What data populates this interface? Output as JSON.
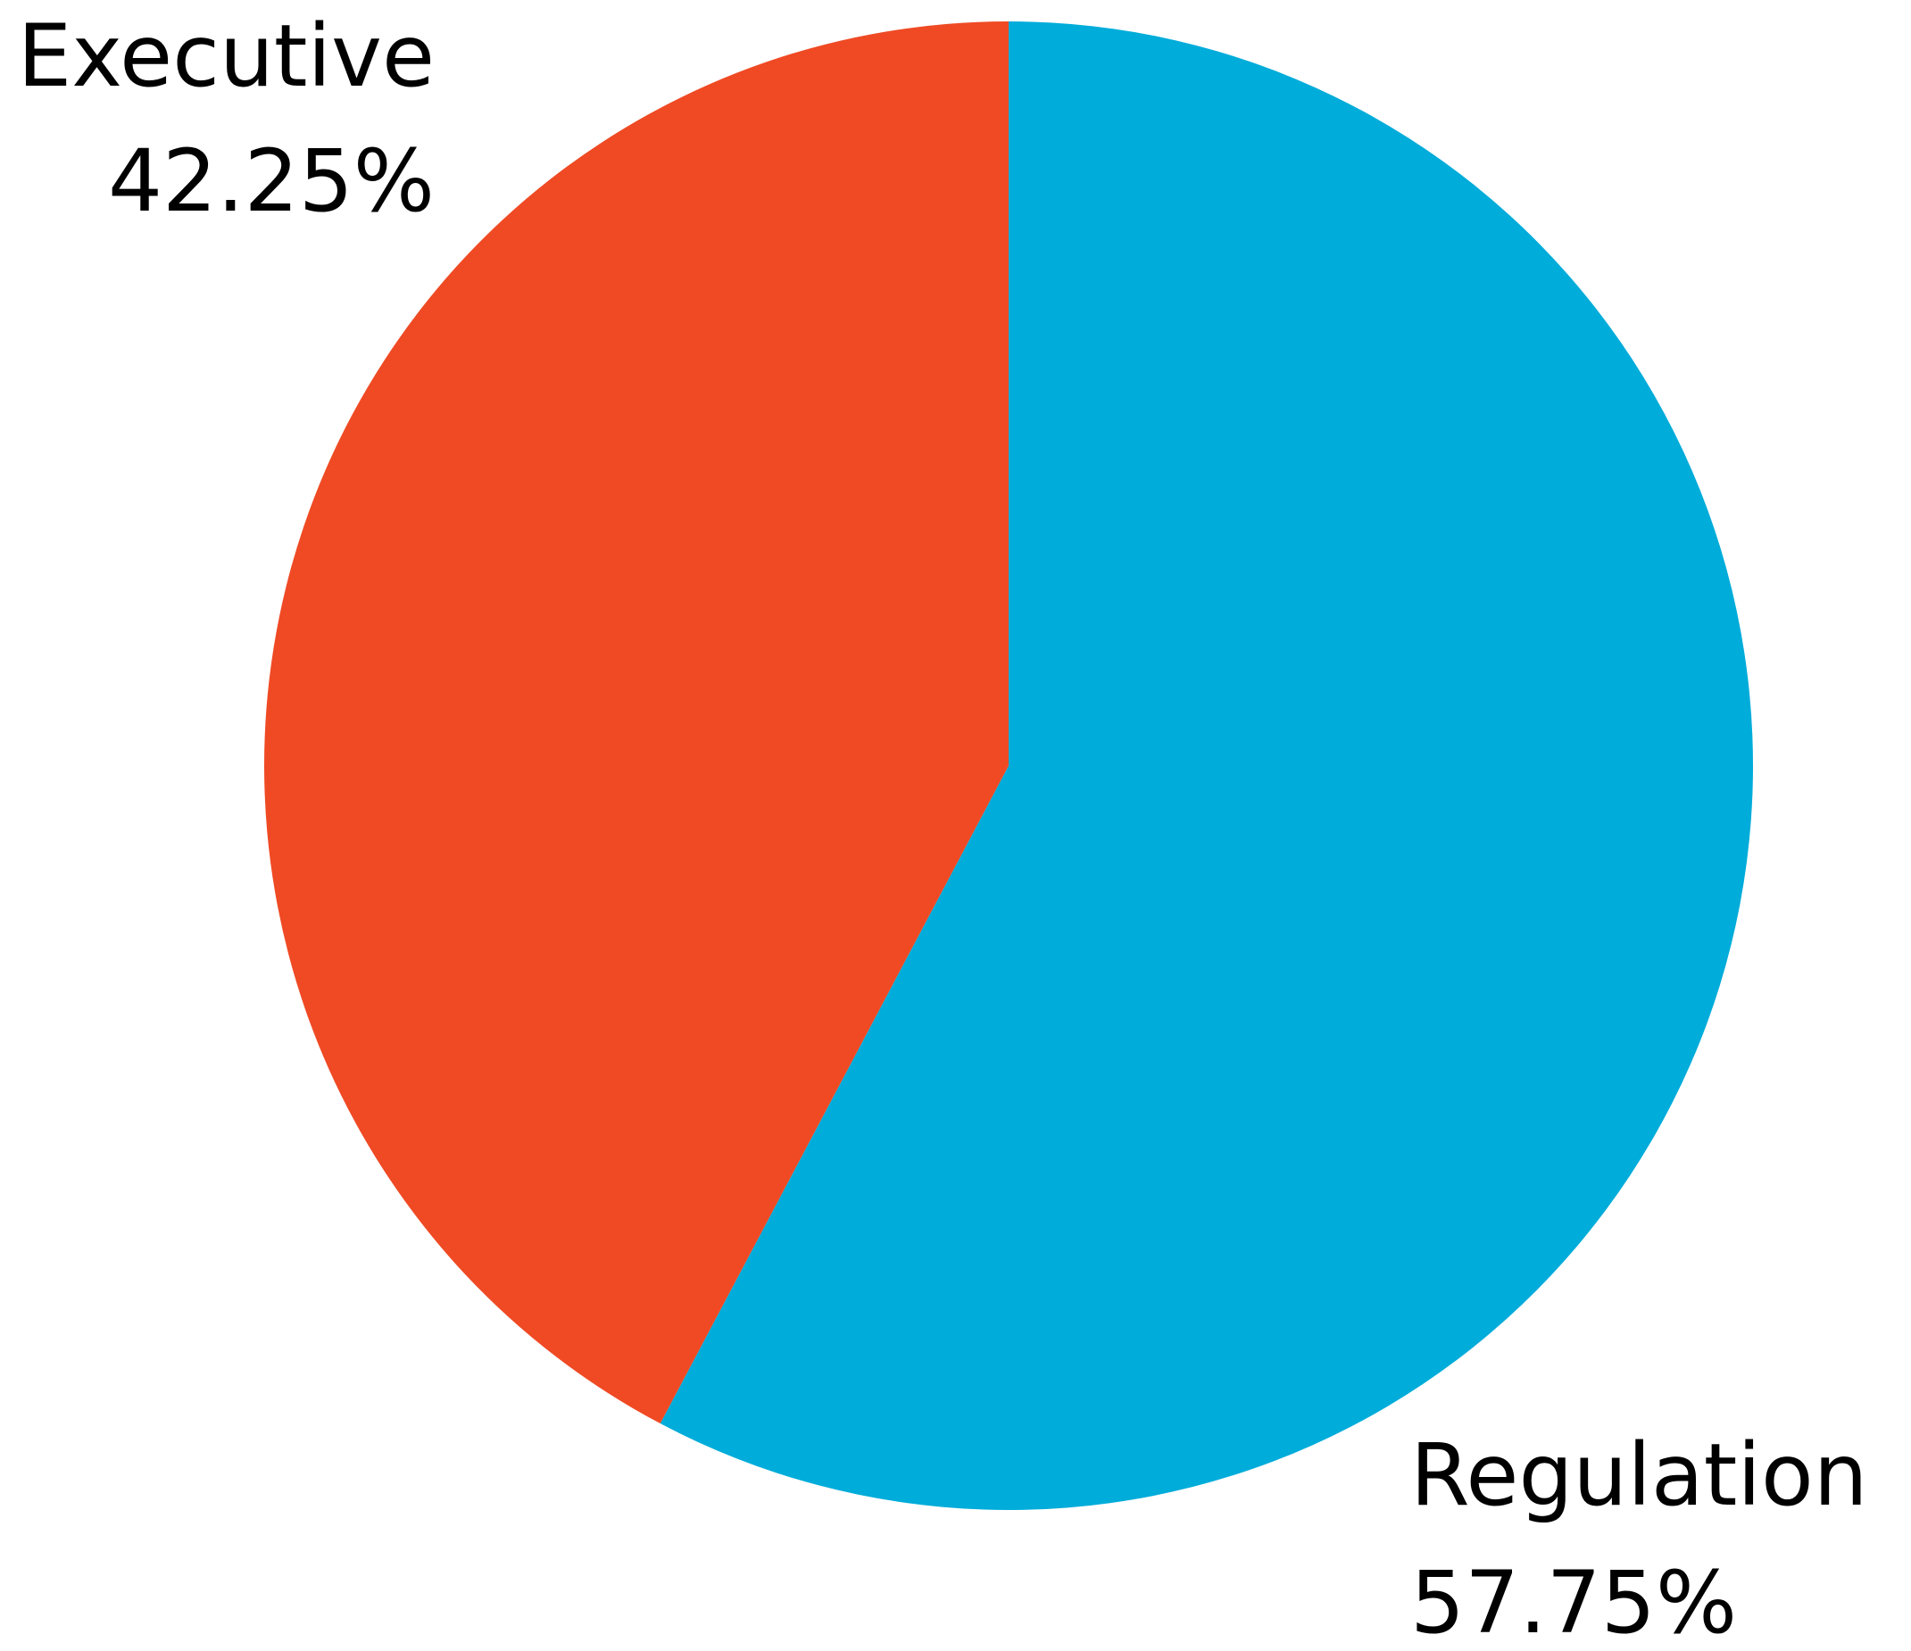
{
  "chart_data": {
    "type": "pie",
    "start_angle": "12 o'clock",
    "direction": "clockwise",
    "slices": [
      {
        "label": "Regulation",
        "value": 57.75,
        "value_label": "57.75%",
        "color": "#00ACDA"
      },
      {
        "label": "Executive",
        "value": 42.25,
        "value_label": "42.25%",
        "color": "#EF4A24"
      }
    ]
  }
}
